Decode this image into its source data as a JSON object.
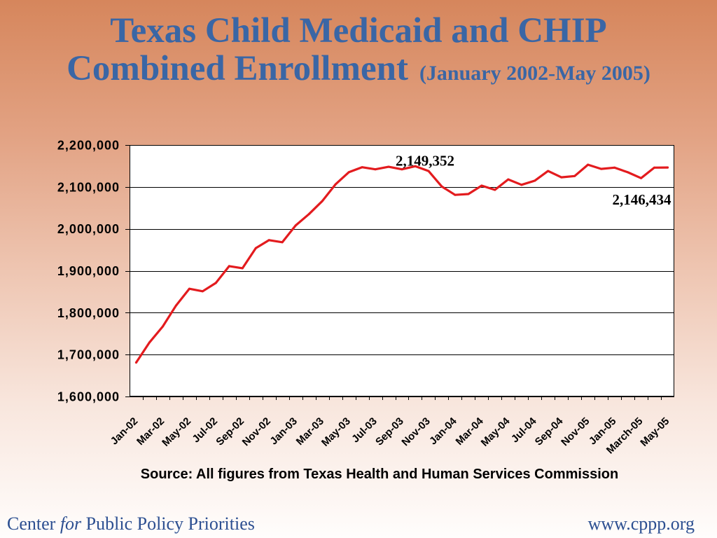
{
  "colors": {
    "background_top": "#d6865c",
    "background_bottom": "#fffdfc",
    "title": "#3a66a5",
    "footer_text": "#2c4f91",
    "plot_background": "#ffffff",
    "gridline": "#000000"
  },
  "chart_data": {
    "type": "line",
    "title_lines": [
      "Texas Child Medicaid and CHIP",
      "Combined Enrollment"
    ],
    "subtitle": "(January 2002-May 2005)",
    "categories": [
      "Jan-02",
      "",
      "Mar-02",
      "",
      "May-02",
      "",
      "Jul-02",
      "",
      "Sep-02",
      "",
      "Nov-02",
      "",
      "Jan-03",
      "",
      "Mar-03",
      "",
      "May-03",
      "",
      "Jul-03",
      "",
      "Sep-03",
      "",
      "Nov-03",
      "",
      "Jan-04",
      "",
      "Mar-04",
      "",
      "May-04",
      "",
      "Jul-04",
      "",
      "Sep-04",
      "",
      "Nov-05",
      "",
      "Jan-05",
      "",
      "March-05",
      "",
      "May-05"
    ],
    "series": [
      {
        "color": "#e31b1e",
        "values": [
          1681000,
          1729000,
          1767000,
          1817000,
          1857000,
          1851000,
          1871000,
          1911000,
          1906000,
          1954000,
          1973000,
          1968000,
          2008000,
          2035000,
          2066000,
          2106000,
          2135000,
          2147000,
          2142000,
          2148000,
          2142000,
          2149352,
          2138000,
          2101000,
          2081000,
          2083000,
          2103000,
          2093000,
          2118000,
          2105000,
          2115000,
          2138000,
          2123000,
          2126000,
          2153000,
          2143000,
          2146000,
          2135000,
          2121000,
          2146000,
          2146434
        ]
      }
    ],
    "ylim": [
      1600000,
      2200000
    ],
    "y_ticks": [
      1600000,
      1700000,
      1800000,
      1900000,
      2000000,
      2100000,
      2200000
    ],
    "y_tick_labels": [
      "1,600,000",
      "1,700,000",
      "1,800,000",
      "1,900,000",
      "2,000,000",
      "2,100,000",
      "2,200,000"
    ],
    "grid": true,
    "legend": "none",
    "annotations": [
      {
        "point": 21,
        "text": "2,149,352",
        "placement": "above"
      },
      {
        "point": 40,
        "text": "2,146,434",
        "placement": "below"
      }
    ],
    "source": "Source: All figures from Texas Health and Human Services Commission"
  },
  "footer": {
    "org_name_parts": [
      "Center ",
      "for",
      " Public Policy Priorities"
    ],
    "url": "www.cppp.org"
  }
}
